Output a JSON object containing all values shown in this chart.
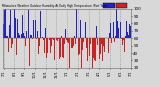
{
  "title": "Milwaukee Weather Outdoor Humidity At Daily High Temperature (Past Year)",
  "num_points": 365,
  "y_min": 20,
  "y_max": 100,
  "reference": 60,
  "plot_bg": "#d8d8d8",
  "above_color": "#2222cc",
  "below_color": "#cc2222",
  "ytick_values": [
    20,
    30,
    40,
    50,
    60,
    70,
    80,
    90,
    100
  ],
  "ytick_fontsize": 3.0,
  "xtick_fontsize": 2.5,
  "grid_color": "#888888",
  "seed": 42,
  "month_starts": [
    0,
    31,
    59,
    90,
    120,
    151,
    181,
    212,
    243,
    273,
    304,
    334,
    365
  ],
  "month_labels": [
    "7/1",
    "8/1",
    "9/1",
    "10/1",
    "11/1",
    "12/1",
    "1/1",
    "2/1",
    "3/1",
    "4/1",
    "5/1",
    "6/1",
    "7/1"
  ]
}
